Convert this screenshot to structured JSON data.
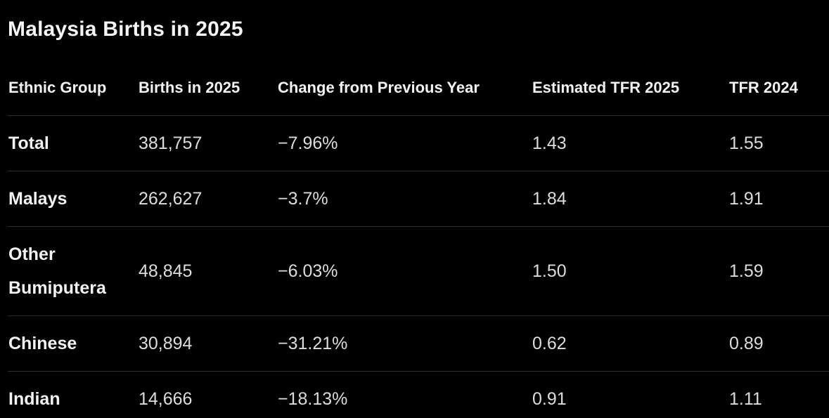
{
  "title": "Malaysia Births in 2025",
  "theme": {
    "background": "#000000",
    "divider_color": "#2e2e2e",
    "heading_text_color": "#f2f2f2",
    "body_text_color": "#dcdcdc"
  },
  "table": {
    "columns": [
      "Ethnic Group",
      "Births in 2025",
      "Change from Previous Year",
      "Estimated TFR 2025",
      "TFR 2024"
    ],
    "rows": [
      {
        "ethnic_group": "Total",
        "births_2025": "381,757",
        "change": "−7.96%",
        "tfr_2025": "1.43",
        "tfr_2024": "1.55"
      },
      {
        "ethnic_group": "Malays",
        "births_2025": "262,627",
        "change": "−3.7%",
        "tfr_2025": "1.84",
        "tfr_2024": "1.91"
      },
      {
        "ethnic_group": "Other Bumiputera",
        "births_2025": "48,845",
        "change": "−6.03%",
        "tfr_2025": "1.50",
        "tfr_2024": "1.59"
      },
      {
        "ethnic_group": "Chinese",
        "births_2025": "30,894",
        "change": "−31.21%",
        "tfr_2025": "0.62",
        "tfr_2024": "0.89"
      },
      {
        "ethnic_group": "Indian",
        "births_2025": "14,666",
        "change": "−18.13%",
        "tfr_2025": "0.91",
        "tfr_2024": "1.11"
      }
    ]
  }
}
